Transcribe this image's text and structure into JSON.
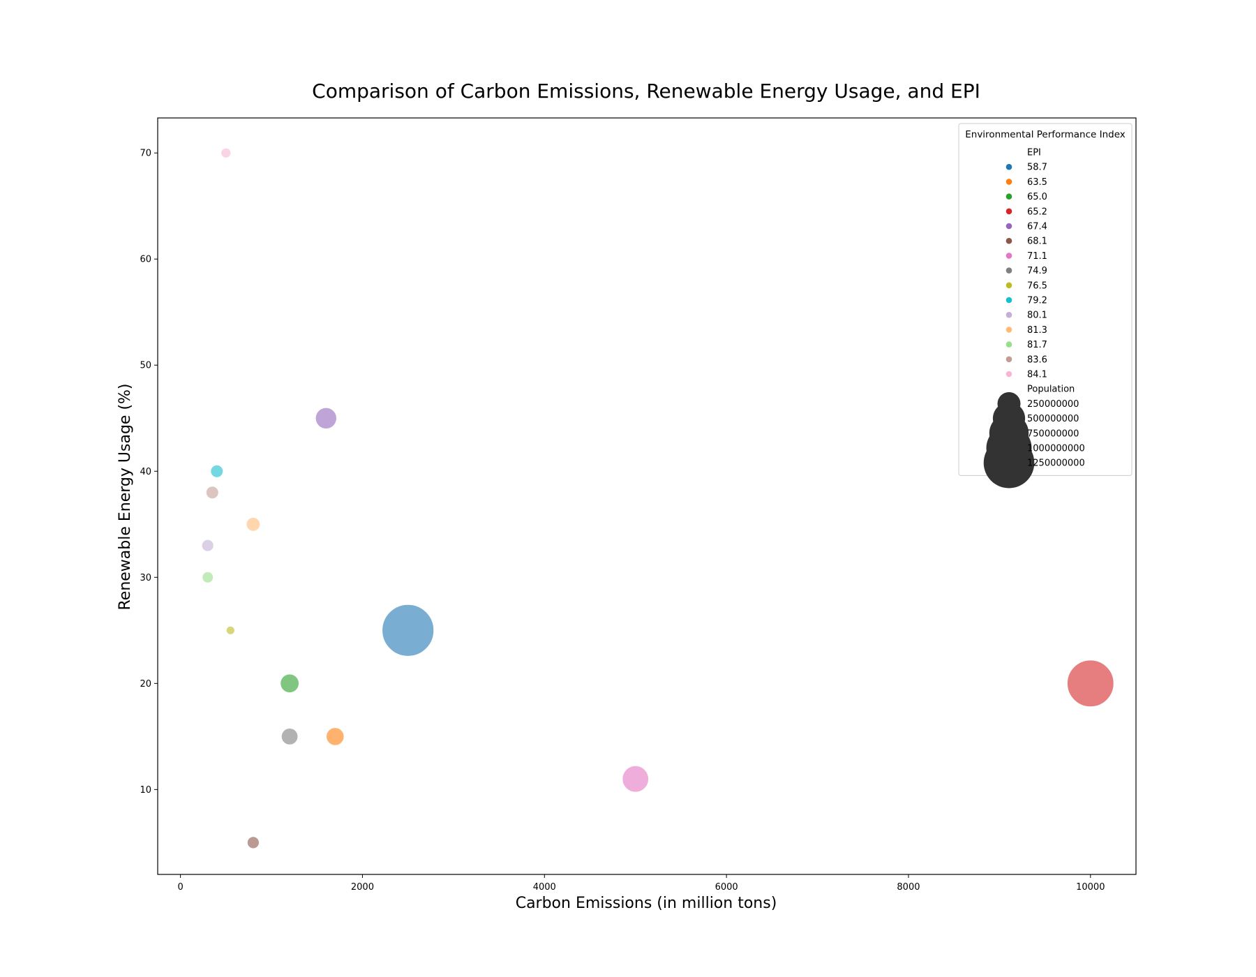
{
  "chart_data": {
    "type": "scatter",
    "title": "Comparison of Carbon Emissions, Renewable Energy Usage, and EPI",
    "xlabel": "Carbon Emissions (in million tons)",
    "ylabel": "Renewable Energy Usage (%)",
    "xlim": [
      -250,
      10500
    ],
    "ylim": [
      2,
      73.3
    ],
    "xticks": [
      0,
      2000,
      4000,
      6000,
      8000,
      10000
    ],
    "yticks": [
      10,
      20,
      30,
      40,
      50,
      60,
      70
    ],
    "grid": false,
    "legend": {
      "title": "Environmental Performance Index",
      "placement": "top-right",
      "hue_title": "EPI",
      "size_title": "Population",
      "hue_entries": [
        {
          "label": "58.7",
          "color": "#1f77b4"
        },
        {
          "label": "63.5",
          "color": "#ff7f0e"
        },
        {
          "label": "65.0",
          "color": "#2ca02c"
        },
        {
          "label": "65.2",
          "color": "#d62728"
        },
        {
          "label": "67.4",
          "color": "#9467bd"
        },
        {
          "label": "68.1",
          "color": "#8c564b"
        },
        {
          "label": "71.1",
          "color": "#e377c2"
        },
        {
          "label": "74.9",
          "color": "#7f7f7f"
        },
        {
          "label": "76.5",
          "color": "#bcbd22"
        },
        {
          "label": "79.2",
          "color": "#17becf"
        },
        {
          "label": "80.1",
          "color": "#c5b0d5"
        },
        {
          "label": "81.3",
          "color": "#ffbb78"
        },
        {
          "label": "81.7",
          "color": "#98df8a"
        },
        {
          "label": "83.6",
          "color": "#c49c94"
        },
        {
          "label": "84.1",
          "color": "#f7b6d2"
        }
      ],
      "size_entries": [
        {
          "label": "250000000",
          "value": 250000000
        },
        {
          "label": "500000000",
          "value": 500000000
        },
        {
          "label": "750000000",
          "value": 750000000
        },
        {
          "label": "1000000000",
          "value": 1000000000
        },
        {
          "label": "1250000000",
          "value": 1250000000
        }
      ]
    },
    "points": [
      {
        "x": 2500,
        "y": 25,
        "epi": "58.7",
        "population": 1300000000,
        "color": "#1f77b4"
      },
      {
        "x": 1700,
        "y": 15,
        "epi": "63.5",
        "population": 145000000,
        "color": "#ff7f0e"
      },
      {
        "x": 1200,
        "y": 20,
        "epi": "65.0",
        "population": 160000000,
        "color": "#2ca02c"
      },
      {
        "x": 10000,
        "y": 20,
        "epi": "65.2",
        "population": 1050000000,
        "color": "#d62728"
      },
      {
        "x": 1600,
        "y": 45,
        "epi": "67.4",
        "population": 210000000,
        "color": "#9467bd"
      },
      {
        "x": 800,
        "y": 5,
        "epi": "68.1",
        "population": 60000000,
        "color": "#8c564b"
      },
      {
        "x": 5000,
        "y": 11,
        "epi": "71.1",
        "population": 330000000,
        "color": "#e377c2"
      },
      {
        "x": 1200,
        "y": 15,
        "epi": "74.9",
        "population": 125000000,
        "color": "#7f7f7f"
      },
      {
        "x": 550,
        "y": 25,
        "epi": "76.5",
        "population": 26000000,
        "color": "#bcbd22"
      },
      {
        "x": 400,
        "y": 40,
        "epi": "79.2",
        "population": 67000000,
        "color": "#17becf"
      },
      {
        "x": 300,
        "y": 33,
        "epi": "80.1",
        "population": 60000000,
        "color": "#c5b0d5"
      },
      {
        "x": 800,
        "y": 35,
        "epi": "81.3",
        "population": 83000000,
        "color": "#ffbb78"
      },
      {
        "x": 300,
        "y": 30,
        "epi": "81.7",
        "population": 51000000,
        "color": "#98df8a"
      },
      {
        "x": 350,
        "y": 38,
        "epi": "83.6",
        "population": 67000000,
        "color": "#c49c94"
      },
      {
        "x": 500,
        "y": 70,
        "epi": "84.1",
        "population": 38000000,
        "color": "#f7b6d2"
      }
    ]
  }
}
